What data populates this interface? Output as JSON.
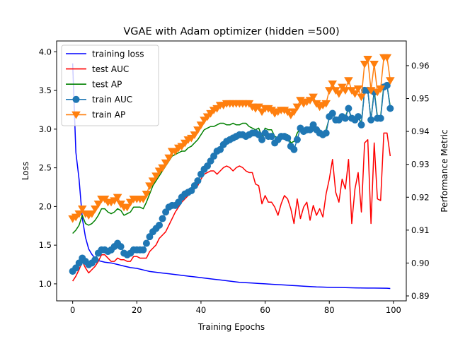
{
  "chart_data": {
    "type": "line",
    "title": "VGAE with Adam optimizer (hidden =500)",
    "xlabel": "Training Epochs",
    "ylabel_left": "Loss",
    "ylabel_right": "Performance Metric",
    "xlim": [
      -5,
      104
    ],
    "ylim_left": [
      0.78,
      4.14
    ],
    "ylim_right": [
      0.8885,
      0.9675
    ],
    "xticks": [
      0,
      20,
      40,
      60,
      80,
      100
    ],
    "yticks_left": [
      1.0,
      1.5,
      2.0,
      2.5,
      3.0,
      3.5,
      4.0
    ],
    "yticks_right": [
      0.89,
      0.9,
      0.91,
      0.92,
      0.93,
      0.94,
      0.95,
      0.96
    ],
    "legend_position": "top-left",
    "series": [
      {
        "name": "training loss",
        "axis": "left",
        "color": "#0000ff",
        "marker": "none",
        "x": [
          0,
          1,
          2,
          3,
          4,
          5,
          6,
          7,
          8,
          9,
          10,
          12,
          14,
          16,
          18,
          20,
          22,
          24,
          26,
          28,
          30,
          32,
          34,
          36,
          38,
          40,
          42,
          44,
          46,
          48,
          50,
          52,
          54,
          56,
          58,
          60,
          62,
          64,
          66,
          68,
          70,
          72,
          74,
          76,
          78,
          80,
          82,
          84,
          86,
          88,
          90,
          92,
          94,
          96,
          98,
          99
        ],
        "values": [
          3.85,
          2.7,
          2.35,
          1.85,
          1.6,
          1.45,
          1.38,
          1.33,
          1.3,
          1.29,
          1.28,
          1.27,
          1.25,
          1.23,
          1.21,
          1.2,
          1.18,
          1.16,
          1.15,
          1.14,
          1.13,
          1.12,
          1.11,
          1.1,
          1.09,
          1.08,
          1.07,
          1.06,
          1.05,
          1.04,
          1.03,
          1.02,
          1.015,
          1.01,
          1.005,
          1.0,
          0.995,
          0.99,
          0.985,
          0.98,
          0.975,
          0.97,
          0.965,
          0.96,
          0.958,
          0.955,
          0.953,
          0.952,
          0.95,
          0.948,
          0.947,
          0.946,
          0.945,
          0.944,
          0.943,
          0.94
        ]
      },
      {
        "name": "test AUC",
        "axis": "right",
        "color": "#ff0000",
        "marker": "none",
        "x": [
          0,
          1,
          2,
          3,
          4,
          5,
          6,
          7,
          8,
          9,
          10,
          11,
          12,
          13,
          14,
          15,
          16,
          17,
          18,
          19,
          20,
          21,
          22,
          23,
          24,
          25,
          26,
          27,
          28,
          29,
          30,
          31,
          32,
          33,
          34,
          35,
          36,
          37,
          38,
          39,
          40,
          41,
          42,
          43,
          44,
          45,
          46,
          47,
          48,
          49,
          50,
          51,
          52,
          53,
          54,
          55,
          56,
          57,
          58,
          59,
          60,
          61,
          62,
          63,
          64,
          65,
          66,
          67,
          68,
          69,
          70,
          71,
          72,
          73,
          74,
          75,
          76,
          77,
          78,
          79,
          80,
          81,
          82,
          83,
          84,
          85,
          86,
          87,
          88,
          89,
          90,
          91,
          92,
          93,
          94,
          95,
          96,
          97,
          98,
          99
        ],
        "values": [
          0.8945,
          0.896,
          0.898,
          0.9005,
          0.8985,
          0.897,
          0.898,
          0.899,
          0.9005,
          0.9025,
          0.9025,
          0.9015,
          0.9005,
          0.9005,
          0.9015,
          0.901,
          0.901,
          0.9005,
          0.9005,
          0.902,
          0.902,
          0.9015,
          0.9015,
          0.9015,
          0.9035,
          0.9045,
          0.9055,
          0.9075,
          0.9085,
          0.9095,
          0.9115,
          0.9135,
          0.9155,
          0.917,
          0.9185,
          0.9195,
          0.9205,
          0.9215,
          0.9225,
          0.9235,
          0.9255,
          0.927,
          0.9275,
          0.928,
          0.928,
          0.927,
          0.928,
          0.929,
          0.9295,
          0.929,
          0.928,
          0.929,
          0.9295,
          0.929,
          0.928,
          0.9275,
          0.9275,
          0.924,
          0.9235,
          0.918,
          0.9205,
          0.9185,
          0.9185,
          0.917,
          0.9145,
          0.918,
          0.9205,
          0.9195,
          0.9165,
          0.912,
          0.9195,
          0.9135,
          0.917,
          0.9185,
          0.913,
          0.9175,
          0.9145,
          0.9165,
          0.914,
          0.921,
          0.9255,
          0.9315,
          0.9215,
          0.9185,
          0.9255,
          0.9225,
          0.9315,
          0.912,
          0.9225,
          0.9275,
          0.9155,
          0.9365,
          0.9375,
          0.912,
          0.9365,
          0.9195,
          0.919,
          0.9395,
          0.9395,
          0.9325
        ]
      },
      {
        "name": "test AP",
        "axis": "right",
        "color": "#008000",
        "marker": "none",
        "x": [
          0,
          1,
          2,
          3,
          4,
          5,
          6,
          7,
          8,
          9,
          10,
          11,
          12,
          13,
          14,
          15,
          16,
          17,
          18,
          19,
          20,
          21,
          22,
          23,
          24,
          25,
          26,
          27,
          28,
          29,
          30,
          31,
          32,
          33,
          34,
          35,
          36,
          37,
          38,
          39,
          40,
          41,
          42,
          43,
          44,
          45,
          46,
          47,
          48,
          49,
          50,
          51,
          52,
          53,
          54,
          55,
          56,
          57,
          58,
          59,
          60,
          61,
          62,
          63,
          64,
          65,
          66,
          67,
          68,
          69,
          70,
          71,
          72,
          73,
          74,
          75,
          76,
          77,
          78,
          79,
          80,
          81,
          82,
          83,
          84,
          85,
          86,
          87,
          88,
          89,
          90,
          91,
          92,
          93,
          94,
          95,
          96,
          97,
          98,
          99
        ],
        "values": [
          0.909,
          0.91,
          0.9115,
          0.9145,
          0.912,
          0.9115,
          0.912,
          0.913,
          0.9145,
          0.9165,
          0.9165,
          0.9155,
          0.915,
          0.9155,
          0.9165,
          0.916,
          0.9145,
          0.915,
          0.9155,
          0.917,
          0.917,
          0.917,
          0.9165,
          0.9185,
          0.921,
          0.9235,
          0.925,
          0.9265,
          0.928,
          0.9295,
          0.931,
          0.9325,
          0.933,
          0.9335,
          0.934,
          0.934,
          0.935,
          0.9355,
          0.9365,
          0.9375,
          0.939,
          0.9405,
          0.941,
          0.9415,
          0.9415,
          0.942,
          0.9425,
          0.9425,
          0.942,
          0.942,
          0.9425,
          0.942,
          0.942,
          0.9425,
          0.9425,
          0.9415,
          0.941,
          0.9405,
          0.941,
          0.9385,
          0.941,
          0.9405,
          0.9405,
          0.9385,
          0.938,
          0.939,
          0.939,
          0.939,
          0.9365,
          0.937,
          0.9395,
          0.941,
          0.94,
          0.94,
          0.94,
          0.9415,
          0.94,
          0.94,
          0.9395,
          0.9405,
          0.944,
          0.9455,
          0.9435,
          0.9435,
          0.9445,
          0.9445,
          0.947,
          0.9435,
          0.9435,
          0.9445,
          0.9425,
          0.9525,
          0.9525,
          0.9435,
          0.9525,
          0.9445,
          0.9445,
          0.954,
          0.954,
          0.9475
        ]
      },
      {
        "name": "train AUC",
        "axis": "right",
        "color": "#1f77b4",
        "marker": "circle",
        "x": [
          0,
          1,
          2,
          3,
          4,
          5,
          6,
          7,
          8,
          9,
          10,
          11,
          12,
          13,
          14,
          15,
          16,
          17,
          18,
          19,
          20,
          21,
          22,
          23,
          24,
          25,
          26,
          27,
          28,
          29,
          30,
          31,
          32,
          33,
          34,
          35,
          36,
          37,
          38,
          39,
          40,
          41,
          42,
          43,
          44,
          45,
          46,
          47,
          48,
          49,
          50,
          51,
          52,
          53,
          54,
          55,
          56,
          57,
          58,
          59,
          60,
          61,
          62,
          63,
          64,
          65,
          66,
          67,
          68,
          69,
          70,
          71,
          72,
          73,
          74,
          75,
          76,
          77,
          78,
          79,
          80,
          81,
          82,
          83,
          84,
          85,
          86,
          87,
          88,
          89,
          90,
          91,
          92,
          93,
          94,
          95,
          96,
          97,
          98,
          99
        ],
        "values": [
          0.8975,
          0.8985,
          0.9,
          0.9015,
          0.9005,
          0.8995,
          0.9,
          0.901,
          0.903,
          0.904,
          0.904,
          0.9035,
          0.904,
          0.905,
          0.906,
          0.905,
          0.903,
          0.9025,
          0.903,
          0.904,
          0.904,
          0.904,
          0.904,
          0.906,
          0.908,
          0.9095,
          0.9105,
          0.9115,
          0.9135,
          0.9155,
          0.917,
          0.9175,
          0.9175,
          0.9185,
          0.92,
          0.921,
          0.9215,
          0.922,
          0.9235,
          0.925,
          0.927,
          0.9285,
          0.9295,
          0.931,
          0.9325,
          0.934,
          0.9345,
          0.936,
          0.937,
          0.9375,
          0.938,
          0.9385,
          0.939,
          0.939,
          0.9385,
          0.939,
          0.9395,
          0.9395,
          0.939,
          0.9375,
          0.9395,
          0.9385,
          0.9385,
          0.9365,
          0.9375,
          0.9385,
          0.9385,
          0.938,
          0.9355,
          0.9345,
          0.9375,
          0.941,
          0.94,
          0.9405,
          0.9405,
          0.942,
          0.9405,
          0.9395,
          0.939,
          0.9395,
          0.9445,
          0.9455,
          0.9435,
          0.9435,
          0.9445,
          0.944,
          0.947,
          0.944,
          0.9435,
          0.9445,
          0.942,
          0.9525,
          0.9525,
          0.9435,
          0.952,
          0.944,
          0.944,
          0.9535,
          0.954,
          0.947
        ]
      },
      {
        "name": "train AP",
        "axis": "right",
        "color": "#ff7f0e",
        "marker": "triangle-down",
        "x": [
          0,
          1,
          2,
          3,
          4,
          5,
          6,
          7,
          8,
          9,
          10,
          11,
          12,
          13,
          14,
          15,
          16,
          17,
          18,
          19,
          20,
          21,
          22,
          23,
          24,
          25,
          26,
          27,
          28,
          29,
          30,
          31,
          32,
          33,
          34,
          35,
          36,
          37,
          38,
          39,
          40,
          41,
          42,
          43,
          44,
          45,
          46,
          47,
          48,
          49,
          50,
          51,
          52,
          53,
          54,
          55,
          56,
          57,
          58,
          59,
          60,
          61,
          62,
          63,
          64,
          65,
          66,
          67,
          68,
          69,
          70,
          71,
          72,
          73,
          74,
          75,
          76,
          77,
          78,
          79,
          80,
          81,
          82,
          83,
          84,
          85,
          86,
          87,
          88,
          89,
          90,
          91,
          92,
          93,
          94,
          95,
          96,
          97,
          98,
          99
        ],
        "values": [
          0.9135,
          0.914,
          0.915,
          0.9165,
          0.915,
          0.9145,
          0.915,
          0.9165,
          0.918,
          0.9195,
          0.9195,
          0.9185,
          0.9185,
          0.919,
          0.92,
          0.918,
          0.917,
          0.917,
          0.9185,
          0.9195,
          0.9195,
          0.9195,
          0.9195,
          0.921,
          0.9235,
          0.925,
          0.9265,
          0.928,
          0.929,
          0.9305,
          0.932,
          0.934,
          0.934,
          0.935,
          0.9355,
          0.9365,
          0.9375,
          0.938,
          0.939,
          0.9405,
          0.942,
          0.9435,
          0.9445,
          0.9455,
          0.9465,
          0.947,
          0.948,
          0.948,
          0.9485,
          0.9485,
          0.9485,
          0.9485,
          0.9485,
          0.9485,
          0.9485,
          0.9485,
          0.9475,
          0.947,
          0.9475,
          0.946,
          0.947,
          0.947,
          0.9465,
          0.9455,
          0.946,
          0.9465,
          0.9465,
          0.946,
          0.945,
          0.946,
          0.9475,
          0.9495,
          0.9485,
          0.949,
          0.9495,
          0.9505,
          0.9485,
          0.9475,
          0.948,
          0.9485,
          0.9525,
          0.9545,
          0.9525,
          0.9515,
          0.9535,
          0.9525,
          0.9555,
          0.9525,
          0.9515,
          0.953,
          0.9505,
          0.9605,
          0.962,
          0.9525,
          0.9605,
          0.952,
          0.953,
          0.9625,
          0.9625,
          0.9555
        ]
      }
    ]
  }
}
